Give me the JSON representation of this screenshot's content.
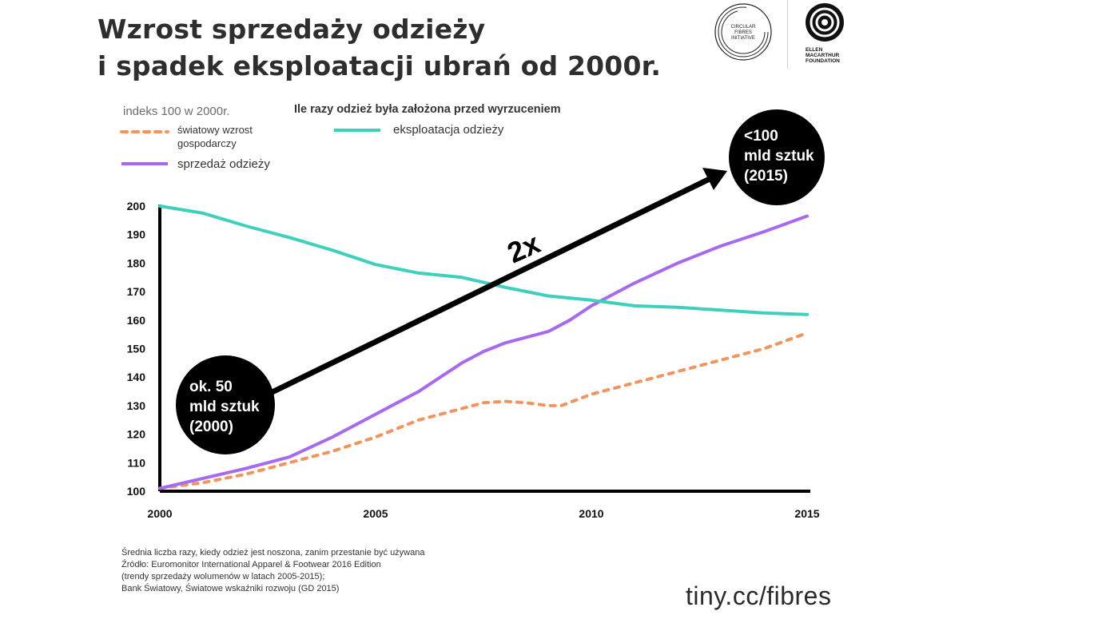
{
  "title": {
    "line1": "Wzrost sprzedaży odzieży",
    "line2": "i spadek eksploatacji ubrań od 2000r."
  },
  "logos": {
    "cfi_text": [
      "CIRCULAR",
      "FIBRES",
      "INITIATIVE"
    ],
    "emf_text": [
      "ELLEN",
      "MACARTHUR",
      "FOUNDATION"
    ]
  },
  "chart_data": {
    "type": "line",
    "index_note": "indeks 100 w 2000r.",
    "secondary_title": "Ile razy odzież była założona przed wyrzuceniem",
    "legend": {
      "gdp": "światowy wzrost gospodarczy",
      "sales": "sprzedaż odzieży",
      "utilization": "eksploatacja odzieży"
    },
    "xlim": [
      2000,
      2015
    ],
    "ylim": [
      100,
      200
    ],
    "x_ticks": [
      2000,
      2005,
      2010,
      2015
    ],
    "y_ticks": [
      100,
      110,
      120,
      130,
      140,
      150,
      160,
      170,
      180,
      190,
      200
    ],
    "series": [
      {
        "key": "gdp",
        "name": "światowy wzrost gospodarczy",
        "color": "#f4945c",
        "style": "dotted",
        "x": [
          2000,
          2001,
          2002,
          2003,
          2004,
          2005,
          2006,
          2007,
          2007.5,
          2008,
          2008.5,
          2009,
          2009.3,
          2010,
          2011,
          2012,
          2013,
          2014,
          2015
        ],
        "y": [
          101,
          103,
          106,
          110,
          114,
          119,
          125,
          129,
          131,
          131.5,
          131,
          130,
          130,
          134,
          138,
          142,
          146,
          150,
          155.5
        ]
      },
      {
        "key": "sales",
        "name": "sprzedaż odzieży",
        "color": "#a66af0",
        "style": "solid",
        "x": [
          2000,
          2001,
          2002,
          2003,
          2004,
          2005,
          2005.5,
          2006,
          2006.5,
          2007,
          2007.5,
          2008,
          2008.5,
          2009,
          2009.5,
          2010,
          2011,
          2012,
          2013,
          2014,
          2015
        ],
        "y": [
          101,
          104.5,
          108,
          112,
          119,
          127,
          131,
          135,
          140,
          145,
          149,
          152,
          154,
          156,
          160,
          165,
          173,
          180,
          186,
          191,
          196.5
        ]
      },
      {
        "key": "utilization",
        "name": "eksploatacja odzieży",
        "color": "#3ecfbd",
        "style": "solid",
        "x": [
          2000,
          2001,
          2002,
          2003,
          2004,
          2005,
          2006,
          2007,
          2008,
          2009,
          2010,
          2011,
          2012,
          2013,
          2014,
          2015
        ],
        "y": [
          200,
          197.5,
          193,
          189,
          184.5,
          179.5,
          176.5,
          175,
          171.5,
          168.5,
          167,
          165,
          164.5,
          163.5,
          162.5,
          162
        ]
      }
    ],
    "annotations": {
      "start_bubble": [
        "ok. 50",
        "mld sztuk",
        "(2000)"
      ],
      "end_bubble": [
        "<100",
        "mld sztuk",
        "(2015)"
      ],
      "arrow_label": "2x"
    }
  },
  "footer": {
    "sources": [
      "Średnia liczba razy, kiedy odzież jest noszona, zanim przestanie być używana",
      "Źródło: Euromonitor International Apparel & Footwear 2016 Edition",
      "(trendy sprzedaży wolumenów w latach 2005-2015);",
      "Bank Światowy, Światowe wskaźniki rozwoju (GD 2015)"
    ],
    "url": "tiny.cc/fibres"
  }
}
